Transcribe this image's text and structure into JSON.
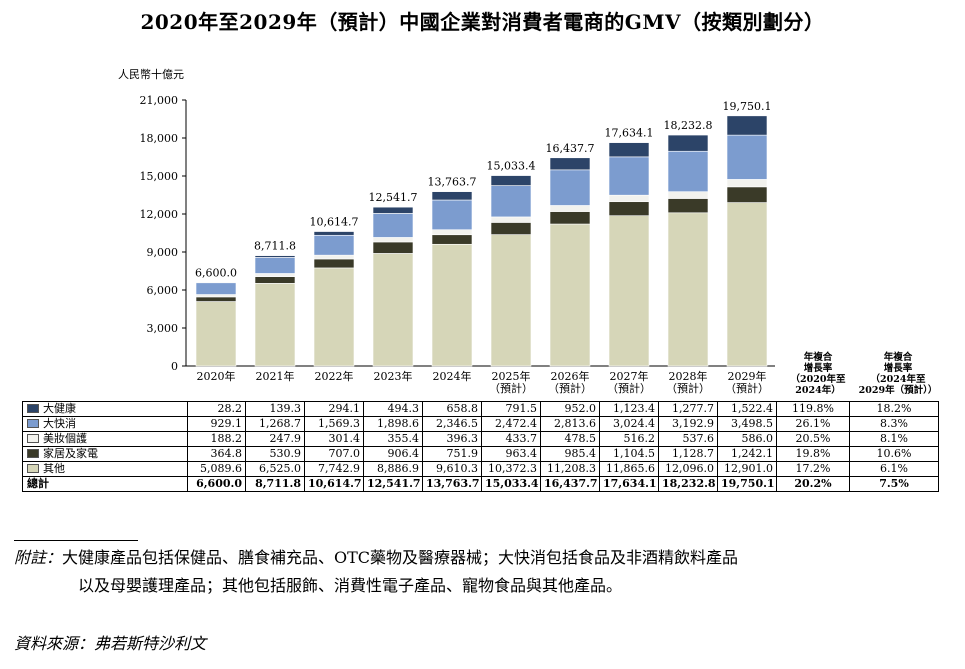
{
  "title": "2020年至2029年（預計）中國企業對消費者電商的GMV（按類別劃分）",
  "chart_data": {
    "type": "bar",
    "stacked": true,
    "unit_label": "人民幣十億元",
    "title": "2020年至2029年（預計）中國企業對消費者電商的GMV（按類別劃分）",
    "xlabel": "",
    "ylabel": "人民幣十億元",
    "ylim": [
      0,
      21000
    ],
    "yticks": [
      0,
      3000,
      6000,
      9000,
      12000,
      15000,
      18000,
      21000
    ],
    "ytick_labels": [
      "0",
      "3,000",
      "6,000",
      "9,000",
      "12,000",
      "15,000",
      "18,000",
      "21,000"
    ],
    "grid": false,
    "legend": "table-left",
    "categories": [
      [
        "2020年"
      ],
      [
        "2021年"
      ],
      [
        "2022年"
      ],
      [
        "2023年"
      ],
      [
        "2024年"
      ],
      [
        "2025年",
        "（預計）"
      ],
      [
        "2026年",
        "（預計）"
      ],
      [
        "2027年",
        "（預計）"
      ],
      [
        "2028年",
        "（預計）"
      ],
      [
        "2029年",
        "（預計）"
      ]
    ],
    "totals": [
      6600.0,
      8711.8,
      10614.7,
      12541.7,
      13763.7,
      15033.4,
      16437.7,
      17634.1,
      18232.8,
      19750.1
    ],
    "total_labels": [
      "6,600.0",
      "8,711.8",
      "10,614.7",
      "12,541.7",
      "13,763.7",
      "15,033.4",
      "16,437.7",
      "17,634.1",
      "18,232.8",
      "19,750.1"
    ],
    "series": [
      {
        "name": "其他",
        "color": "#d6d6b8",
        "values": [
          5089.6,
          6525.0,
          7742.9,
          8886.9,
          9610.3,
          10372.3,
          11208.3,
          11865.6,
          12096.0,
          12901.0
        ]
      },
      {
        "name": "家居及家電",
        "color": "#3a3a28",
        "values": [
          364.8,
          530.9,
          707.0,
          906.4,
          751.9,
          963.4,
          985.4,
          1104.5,
          1128.7,
          1242.1
        ]
      },
      {
        "name": "美妝個護",
        "color": "#f2f2ee",
        "values": [
          188.2,
          247.9,
          301.4,
          355.4,
          396.3,
          433.7,
          478.5,
          516.2,
          537.6,
          586.0
        ]
      },
      {
        "name": "大快消",
        "color": "#7c9ccf",
        "values": [
          929.1,
          1268.7,
          1569.3,
          1898.6,
          2346.5,
          2472.4,
          2813.6,
          3024.4,
          3192.9,
          3498.5
        ]
      },
      {
        "name": "大健康",
        "color": "#2c4468",
        "values": [
          28.2,
          139.3,
          294.1,
          494.3,
          658.8,
          791.5,
          952.0,
          1123.4,
          1277.7,
          1522.4
        ]
      }
    ],
    "cagr_headers": [
      [
        "年複合",
        "增長率",
        "（2020年至",
        "2024年）"
      ],
      [
        "年複合",
        "增長率",
        "（2024年至",
        "2029年（預計））"
      ]
    ]
  },
  "table": {
    "rows": [
      {
        "label": "大健康",
        "color": "#2c4468",
        "cells": [
          "28.2",
          "139.3",
          "294.1",
          "494.3",
          "658.8",
          "791.5",
          "952.0",
          "1,123.4",
          "1,277.7",
          "1,522.4"
        ],
        "cagr1": "119.8%",
        "cagr2": "18.2%"
      },
      {
        "label": "大快消",
        "color": "#7c9ccf",
        "cells": [
          "929.1",
          "1,268.7",
          "1,569.3",
          "1,898.6",
          "2,346.5",
          "2,472.4",
          "2,813.6",
          "3,024.4",
          "3,192.9",
          "3,498.5"
        ],
        "cagr1": "26.1%",
        "cagr2": "8.3%"
      },
      {
        "label": "美妝個護",
        "color": "#f2f2ee",
        "cells": [
          "188.2",
          "247.9",
          "301.4",
          "355.4",
          "396.3",
          "433.7",
          "478.5",
          "516.2",
          "537.6",
          "586.0"
        ],
        "cagr1": "20.5%",
        "cagr2": "8.1%"
      },
      {
        "label": "家居及家電",
        "color": "#3a3a28",
        "cells": [
          "364.8",
          "530.9",
          "707.0",
          "906.4",
          "751.9",
          "963.4",
          "985.4",
          "1,104.5",
          "1,128.7",
          "1,242.1"
        ],
        "cagr1": "19.8%",
        "cagr2": "10.6%"
      },
      {
        "label": "其他",
        "color": "#d6d6b8",
        "cells": [
          "5,089.6",
          "6,525.0",
          "7,742.9",
          "8,886.9",
          "9,610.3",
          "10,372.3",
          "11,208.3",
          "11,865.6",
          "12,096.0",
          "12,901.0"
        ],
        "cagr1": "17.2%",
        "cagr2": "6.1%"
      },
      {
        "label": "總計",
        "color": "",
        "cells": [
          "6,600.0",
          "8,711.8",
          "10,614.7",
          "12,541.7",
          "13,763.7",
          "15,033.4",
          "16,437.7",
          "17,634.1",
          "18,232.8",
          "19,750.1"
        ],
        "cagr1": "20.2%",
        "cagr2": "7.5%",
        "total": true
      }
    ]
  },
  "notes": {
    "note_label": "附註：",
    "note_line1": "大健康產品包括保健品、膳食補充品、OTC藥物及醫療器械；大快消包括食品及非酒精飲料產品",
    "note_line2": "以及母嬰護理產品；其他包括服飾、消費性電子產品、寵物食品與其他產品。",
    "source": "資料來源：弗若斯特沙利文"
  }
}
